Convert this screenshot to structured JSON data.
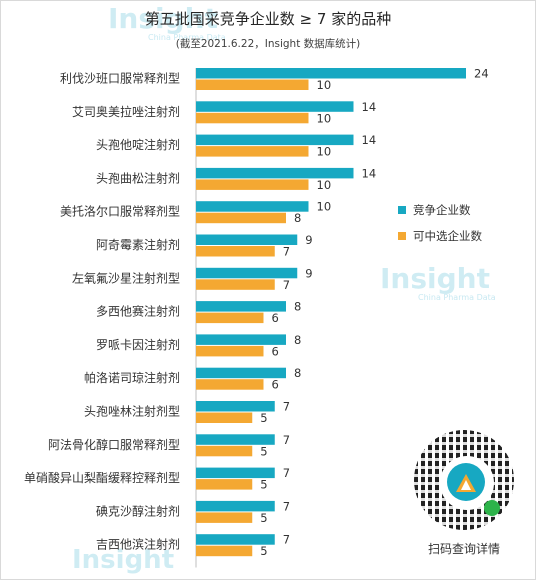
{
  "title": "第五批国采竞争企业数 ≥ 7 家的品种",
  "subtitle": "(截至2021.6.22，Insight 数据库统计)",
  "watermark": "Insight",
  "watermark_sub": "China Pharma Data",
  "qr_caption": "扫码查询详情",
  "colors": {
    "series1": "#17a8c2",
    "series2": "#f4a832"
  },
  "chart_data": {
    "type": "bar",
    "orientation": "horizontal",
    "title": "第五批国采竞争企业数 ≥ 7 家的品种",
    "subtitle": "(截至2021.6.22，Insight 数据库统计)",
    "categories": [
      "利伐沙班口服常释剂型",
      "艾司奥美拉唑注射剂",
      "头孢他啶注射剂",
      "头孢曲松注射剂",
      "美托洛尔口服常释剂型",
      "阿奇霉素注射剂",
      "左氧氟沙星注射剂型",
      "多西他赛注射剂",
      "罗哌卡因注射剂",
      "帕洛诺司琼注射剂",
      "头孢唑林注射剂型",
      "阿法骨化醇口服常释剂型",
      "单硝酸异山梨酯缓释控释剂型",
      "碘克沙醇注射剂",
      "吉西他滨注射剂"
    ],
    "series": [
      {
        "name": "竞争企业数",
        "values": [
          24,
          14,
          14,
          14,
          10,
          9,
          9,
          8,
          8,
          8,
          7,
          7,
          7,
          7,
          7
        ]
      },
      {
        "name": "可中选企业数",
        "values": [
          10,
          10,
          10,
          10,
          8,
          7,
          7,
          6,
          6,
          6,
          5,
          5,
          5,
          5,
          5
        ]
      }
    ],
    "xlim": [
      0,
      24
    ],
    "legend": "right",
    "grid": false
  }
}
